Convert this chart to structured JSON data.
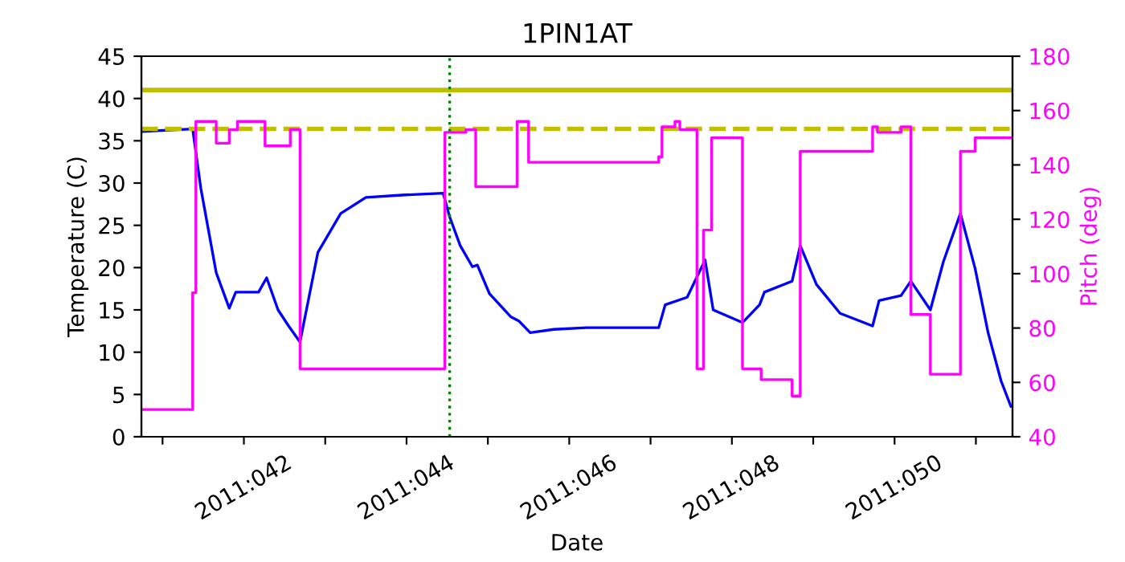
{
  "chart_data": {
    "type": "line",
    "title": "1PIN1AT",
    "xlabel": "Date",
    "ylabel": "Temperature (C)",
    "y2label": "Pitch (deg)",
    "xlim": [
      "2011-02-09T17:46",
      "2011-02-20T10:48"
    ],
    "xticks": [
      {
        "value": "2011-02-10",
        "label": null
      },
      {
        "value": "2011-02-11",
        "label": "2011:042"
      },
      {
        "value": "2011-02-12",
        "label": null
      },
      {
        "value": "2011-02-13",
        "label": "2011:044"
      },
      {
        "value": "2011-02-14",
        "label": null
      },
      {
        "value": "2011-02-15",
        "label": "2011:046"
      },
      {
        "value": "2011-02-16",
        "label": null
      },
      {
        "value": "2011-02-17",
        "label": "2011:048"
      },
      {
        "value": "2011-02-18",
        "label": null
      },
      {
        "value": "2011-02-19",
        "label": "2011:050"
      },
      {
        "value": "2011-02-20",
        "label": null
      }
    ],
    "ylim": [
      0,
      45
    ],
    "yticks": [
      0,
      5,
      10,
      15,
      20,
      25,
      30,
      35,
      40,
      45
    ],
    "y2lim": [
      40,
      180
    ],
    "y2ticks": [
      40,
      60,
      80,
      100,
      120,
      140,
      160,
      180
    ],
    "series": [
      {
        "color": "#0000ff",
        "x": [
          "2011-02-09T17:46",
          "2011-02-10T08:53",
          "2011-02-10T11:17",
          "2011-02-10T15:50",
          "2011-02-10T19:41",
          "2011-02-10T21:36",
          "2011-02-11T04:19",
          "2011-02-11T06:43",
          "2011-02-11T10:05",
          "2011-02-11T13:12",
          "2011-02-11T16:34",
          "2011-02-11T21:50",
          "2011-02-12T04:34",
          "2011-02-12T12:00",
          "2011-02-12T23:31",
          "2011-02-13T10:48",
          "2011-02-13T12:43",
          "2011-02-13T15:50",
          "2011-02-13T19:26",
          "2011-02-13T20:53",
          "2011-02-14T00:29",
          "2011-02-14T06:43",
          "2011-02-14T09:07",
          "2011-02-14T12:29",
          "2011-02-14T19:26",
          "2011-02-15T05:02",
          "2011-02-16T02:24",
          "2011-02-16T04:19",
          "2011-02-16T10:48",
          "2011-02-16T16:05",
          "2011-02-16T18:29",
          "2011-02-17T03:07",
          "2011-02-17T08:10",
          "2011-02-17T09:36",
          "2011-02-17T17:46",
          "2011-02-17T20:10",
          "2011-02-18T00:58",
          "2011-02-18T07:55",
          "2011-02-18T17:31",
          "2011-02-18T19:26",
          "2011-02-19T01:55",
          "2011-02-19T04:48",
          "2011-02-19T10:34",
          "2011-02-19T14:24",
          "2011-02-19T19:26",
          "2011-02-19T23:46",
          "2011-02-20T03:36",
          "2011-02-20T07:26",
          "2011-02-20T10:19"
        ],
        "values": [
          36.1,
          36.4,
          29.4,
          19.4,
          15.2,
          17.1,
          17.1,
          18.8,
          15.0,
          13.1,
          11.2,
          21.8,
          26.4,
          28.3,
          28.6,
          28.8,
          26.0,
          22.6,
          20.1,
          20.3,
          16.9,
          14.2,
          13.7,
          12.3,
          12.7,
          12.9,
          12.9,
          15.6,
          16.5,
          20.9,
          15.0,
          13.5,
          15.6,
          17.1,
          18.4,
          22.6,
          18.0,
          14.6,
          13.1,
          16.1,
          16.7,
          18.4,
          15.0,
          20.7,
          26.4,
          19.9,
          12.3,
          6.6,
          3.6
        ]
      },
      {
        "type": "step",
        "axis": "y2",
        "color": "#ff00ff",
        "x": [
          "2011-02-09T17:46",
          "2011-02-10T08:53",
          "2011-02-10T09:50",
          "2011-02-10T15:50",
          "2011-02-10T19:41",
          "2011-02-10T22:05",
          "2011-02-11T06:14",
          "2011-02-11T13:41",
          "2011-02-11T16:34",
          "2011-02-13T11:17",
          "2011-02-13T16:34",
          "2011-02-13T17:31",
          "2011-02-13T20:24",
          "2011-02-14T08:38",
          "2011-02-14T12:00",
          "2011-02-16T02:24",
          "2011-02-16T03:22",
          "2011-02-16T07:12",
          "2011-02-16T08:38",
          "2011-02-16T13:41",
          "2011-02-16T15:36",
          "2011-02-16T18:00",
          "2011-02-17T03:07",
          "2011-02-17T08:38",
          "2011-02-17T17:46",
          "2011-02-17T20:10",
          "2011-02-18T17:31",
          "2011-02-18T18:58",
          "2011-02-19T01:55",
          "2011-02-19T04:48",
          "2011-02-19T10:34",
          "2011-02-19T19:26",
          "2011-02-19T23:46",
          "2011-02-20T10:19"
        ],
        "values": [
          50,
          93,
          156,
          148,
          153,
          156,
          147,
          153,
          65,
          152,
          152,
          153,
          132,
          156,
          141,
          143,
          154,
          156,
          153,
          65,
          116,
          150,
          65,
          61,
          55,
          145,
          154,
          152,
          154,
          85,
          63,
          145,
          150,
          150
        ]
      }
    ],
    "ref_lines": [
      {
        "axis": "y",
        "value": 41.0,
        "color": "#bfbf00",
        "line_style": "solid"
      },
      {
        "axis": "y",
        "value": 36.4,
        "color": "#bfbf00",
        "line_style": "dashed"
      },
      {
        "axis": "x",
        "value": "2011-02-13T12:43",
        "color": "#008000",
        "line_style": "dotted"
      }
    ]
  }
}
